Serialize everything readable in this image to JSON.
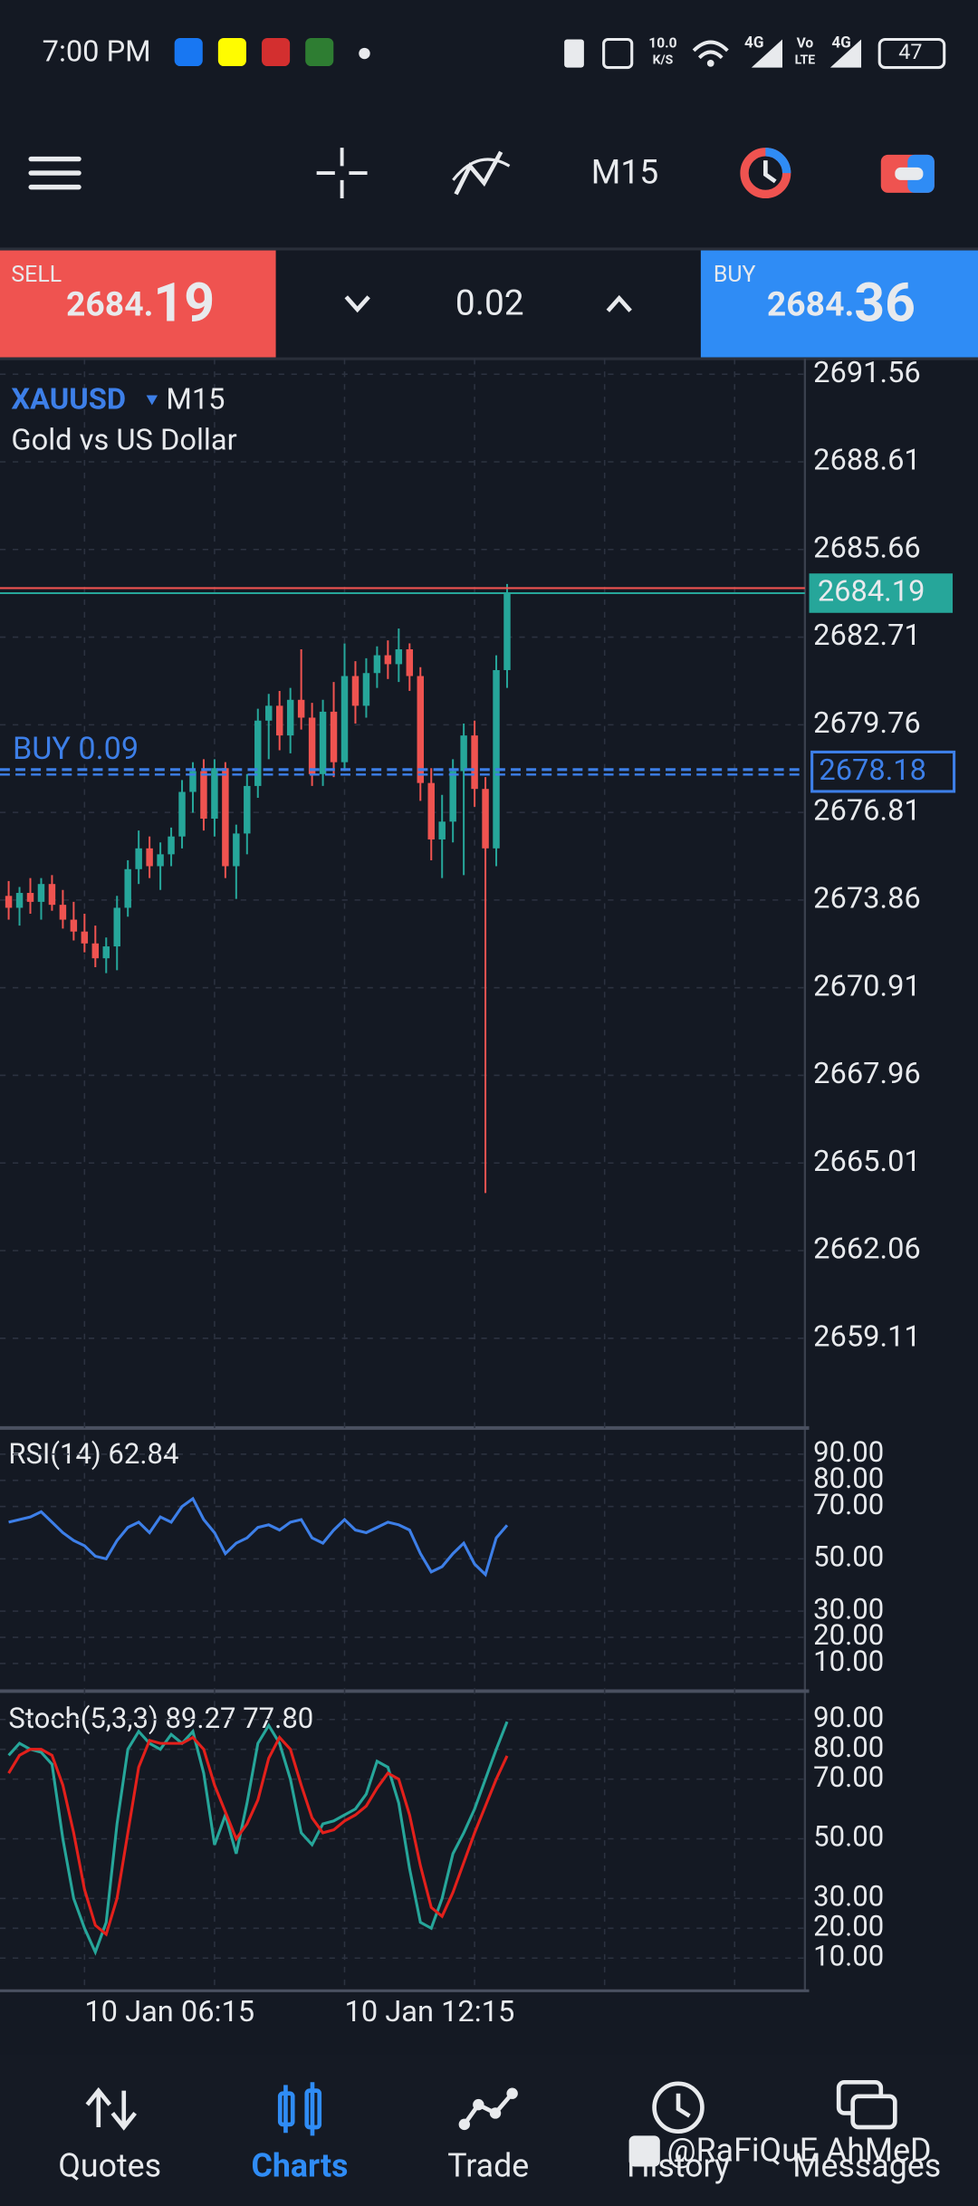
{
  "status_bar": {
    "time": "7:00 PM",
    "speed": "10.0",
    "speed_unit": "K/S",
    "volte_top": "Vo",
    "volte_bottom": "LTE",
    "network_1": "4G",
    "network_2": "4G",
    "battery": "47"
  },
  "toolbar": {
    "timeframe": "M15"
  },
  "trade_bar": {
    "sell_label": "SELL",
    "sell_main": "2684.",
    "sell_pips": "19",
    "volume": "0.02",
    "buy_label": "BUY",
    "buy_main": "2684.",
    "buy_pips": "36"
  },
  "chart_data": [
    {
      "type": "candlestick",
      "symbol": "XAUUSD",
      "timeframe": "M15",
      "subtitle": "Gold vs US Dollar",
      "categories": [
        null,
        null,
        null,
        null,
        null,
        null,
        null,
        "10 Jan 06:15",
        null,
        null,
        null,
        null,
        null,
        null,
        null,
        null,
        null,
        null,
        null,
        null,
        null,
        null,
        null,
        null,
        null,
        null,
        null,
        null,
        null,
        null,
        null,
        "10 Jan 12:15",
        null,
        null,
        null,
        null,
        null,
        null,
        null,
        null,
        null,
        null,
        null,
        null,
        null,
        null,
        null
      ],
      "open": [
        2674.0,
        2673.6,
        2674.1,
        2673.8,
        2674.4,
        2673.7,
        2673.2,
        2672.8,
        2672.4,
        2671.9,
        2672.3,
        2673.6,
        2674.9,
        2675.6,
        2675.0,
        2675.4,
        2676.0,
        2677.5,
        2678.2,
        2676.6,
        2678.3,
        2675.0,
        2676.1,
        2677.7,
        2679.9,
        2680.4,
        2679.4,
        2680.6,
        2680.0,
        2678.1,
        2680.2,
        2678.5,
        2681.4,
        2680.4,
        2681.5,
        2682.1,
        2681.8,
        2682.3,
        2681.4,
        2677.8,
        2675.9,
        2676.5,
        2678.2,
        2679.4,
        2677.6,
        2675.6,
        2681.6
      ],
      "high": [
        2674.5,
        2674.3,
        2674.6,
        2674.6,
        2674.7,
        2674.2,
        2673.8,
        2673.4,
        2673.0,
        2672.6,
        2674.0,
        2675.2,
        2676.2,
        2676.0,
        2675.8,
        2676.3,
        2677.9,
        2678.5,
        2678.6,
        2678.6,
        2678.5,
        2676.4,
        2678.1,
        2680.3,
        2680.8,
        2680.9,
        2681.0,
        2682.3,
        2680.5,
        2680.6,
        2681.2,
        2682.5,
        2681.9,
        2682.0,
        2682.4,
        2682.6,
        2683.0,
        2682.5,
        2681.7,
        2678.3,
        2677.4,
        2678.6,
        2679.8,
        2679.9,
        2678.0,
        2682.1,
        2684.5
      ],
      "low": [
        2673.2,
        2673.0,
        2673.4,
        2673.2,
        2673.5,
        2672.9,
        2672.5,
        2672.1,
        2671.6,
        2671.4,
        2671.5,
        2673.3,
        2674.4,
        2674.6,
        2674.2,
        2675.0,
        2675.6,
        2676.8,
        2676.2,
        2676.0,
        2674.6,
        2673.9,
        2675.4,
        2677.3,
        2678.6,
        2678.9,
        2678.8,
        2679.6,
        2677.7,
        2677.7,
        2678.0,
        2678.2,
        2679.8,
        2680.0,
        2681.0,
        2681.3,
        2681.2,
        2680.9,
        2677.2,
        2675.2,
        2674.6,
        2675.8,
        2674.7,
        2677.0,
        2664.0,
        2675.0,
        2681.0
      ],
      "close": [
        2673.6,
        2674.1,
        2673.8,
        2674.4,
        2673.7,
        2673.2,
        2672.8,
        2672.4,
        2671.9,
        2672.3,
        2673.6,
        2674.9,
        2675.6,
        2675.0,
        2675.4,
        2676.0,
        2677.5,
        2678.2,
        2676.6,
        2678.3,
        2675.0,
        2676.1,
        2677.7,
        2679.9,
        2680.4,
        2679.4,
        2680.6,
        2680.0,
        2678.1,
        2680.2,
        2678.5,
        2681.4,
        2680.4,
        2681.5,
        2682.1,
        2681.8,
        2682.3,
        2681.4,
        2677.8,
        2675.9,
        2676.5,
        2678.2,
        2679.4,
        2677.6,
        2675.6,
        2681.6,
        2684.19
      ],
      "up_color": "#26a69a",
      "down_color": "#ef5350",
      "ylim": [
        2656.09,
        2692.08
      ],
      "yticks": [
        2691.56,
        2688.61,
        2685.66,
        2682.71,
        2679.76,
        2676.81,
        2673.86,
        2670.91,
        2667.96,
        2665.01,
        2662.06,
        2659.11
      ],
      "grid": true,
      "bid_line": 2684.19,
      "bid_color": "#26a69a",
      "ask_line": 2684.36,
      "ask_color": "#ef5350",
      "position": {
        "label": "BUY 0.09",
        "price": 2678.18,
        "color": "#3d7fe8"
      }
    },
    {
      "type": "line",
      "title": "RSI(14) 62.84",
      "series": [
        {
          "color": "#3d7fe8",
          "values": [
            64,
            65,
            66,
            68,
            64,
            60,
            57,
            55,
            51,
            50,
            57,
            62,
            64,
            60,
            66,
            64,
            70,
            73,
            65,
            60,
            52,
            56,
            58,
            62,
            63,
            61,
            64,
            65,
            58,
            56,
            61,
            65,
            61,
            60,
            62,
            64,
            63,
            61,
            52,
            45,
            47,
            52,
            56,
            48,
            44,
            58,
            62.84
          ]
        }
      ],
      "ylim": [
        0,
        100
      ],
      "yticks": [
        {
          "value": 90,
          "label": "90.00"
        },
        {
          "value": 80,
          "label": "80.00"
        },
        {
          "value": 70,
          "label": "70.00"
        },
        {
          "value": 50,
          "label": "50.00"
        },
        {
          "value": 30,
          "label": "30.00"
        },
        {
          "value": 20,
          "label": "20.00"
        },
        {
          "value": 10,
          "label": "10.00"
        }
      ],
      "grid": true
    },
    {
      "type": "line",
      "title": "Stoch(5,3,3) 89.27 77.80",
      "series": [
        {
          "color": "#26a69a",
          "values": [
            78,
            82,
            80,
            79,
            75,
            50,
            30,
            20,
            12,
            22,
            55,
            80,
            86,
            82,
            80,
            85,
            82,
            86,
            72,
            48,
            58,
            45,
            62,
            82,
            88,
            82,
            70,
            52,
            48,
            55,
            56,
            58,
            60,
            65,
            76,
            74,
            62,
            40,
            22,
            20,
            30,
            45,
            52,
            60,
            70,
            80,
            89.27
          ]
        },
        {
          "color": "#e3201b",
          "values": [
            72,
            78,
            80,
            80,
            78,
            68,
            52,
            33,
            21,
            18,
            30,
            52,
            74,
            83,
            82,
            82,
            82,
            84,
            80,
            68,
            59,
            50,
            55,
            63,
            77,
            84,
            80,
            68,
            57,
            52,
            53,
            56,
            58,
            61,
            67,
            72,
            70,
            58,
            41,
            27,
            24,
            32,
            42,
            52,
            61,
            70,
            77.8
          ]
        }
      ],
      "ylim": [
        0,
        100
      ],
      "yticks": [
        {
          "value": 90,
          "label": "90.00"
        },
        {
          "value": 80,
          "label": "80.00"
        },
        {
          "value": 70,
          "label": "70.00"
        },
        {
          "value": 50,
          "label": "50.00"
        },
        {
          "value": 30,
          "label": "30.00"
        },
        {
          "value": 20,
          "label": "20.00"
        },
        {
          "value": 10,
          "label": "10.00"
        }
      ],
      "grid": true
    }
  ],
  "bottom_nav": {
    "items": [
      "Quotes",
      "Charts",
      "Trade",
      "History",
      "Messages"
    ],
    "active": "Charts"
  },
  "watermark": "@RaFiQuE AhMeD"
}
